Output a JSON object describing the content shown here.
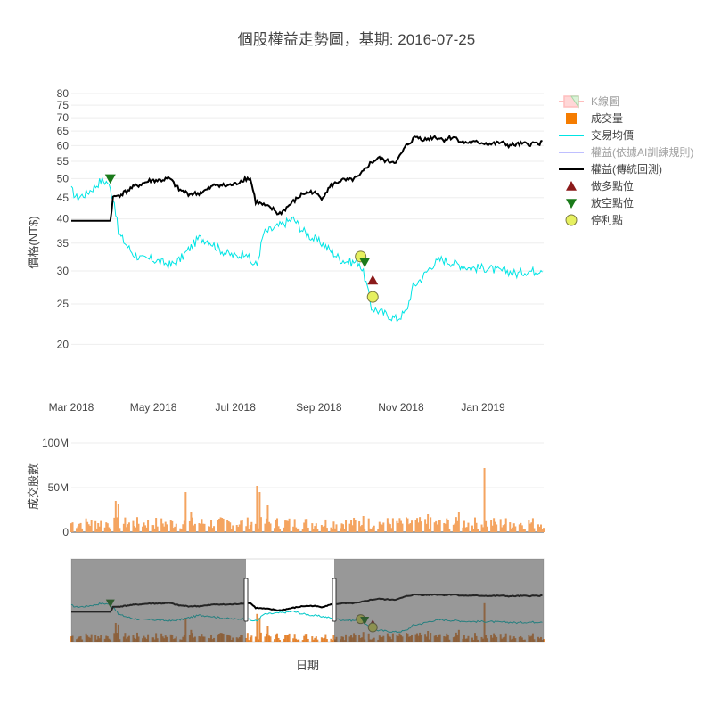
{
  "chart_data": {
    "type": "line",
    "title": "個股權益走勢圖，基期: 2016-07-25",
    "price_panel": {
      "ylabel": "價格(NT$)",
      "y_scale": "log",
      "y_ticks": [
        20,
        25,
        30,
        35,
        40,
        45,
        50,
        55,
        60,
        65,
        70,
        75,
        80
      ],
      "x_ticks": [
        "Mar 2018",
        "May 2018",
        "Jul 2018",
        "Sep 2018",
        "Nov 2018",
        "Jan 2019"
      ],
      "x_range": [
        "2018-03-01",
        "2019-02-15"
      ]
    },
    "volume_panel": {
      "ylabel": "成交股數",
      "y_ticks": [
        "0",
        "50M",
        "100M"
      ],
      "ylim": [
        0,
        100000000
      ]
    },
    "xlabel": "日期",
    "legend": {
      "placement": "right",
      "items": [
        {
          "label": "K線圖",
          "symbol": "candle",
          "color": "#ff7f7f",
          "disabled": true
        },
        {
          "label": "成交量",
          "symbol": "square",
          "color": "#f57c00"
        },
        {
          "label": "交易均價",
          "symbol": "line",
          "color": "#00e5e5"
        },
        {
          "label": "權益(依據AI訓練規則)",
          "symbol": "line",
          "color": "#8080ff",
          "disabled": true
        },
        {
          "label": "權益(傳統回測)",
          "symbol": "line",
          "color": "#000000"
        },
        {
          "label": "做多點位",
          "symbol": "triangle-up",
          "color": "#8b1a1a"
        },
        {
          "label": "放空點位",
          "symbol": "triangle-down",
          "color": "#1a7a1a"
        },
        {
          "label": "停利點",
          "symbol": "circle",
          "color": "#e6f060"
        }
      ]
    },
    "series": [
      {
        "name": "交易均價",
        "color": "#00e5e5",
        "points": [
          [
            "2018-03-01",
            47
          ],
          [
            "2018-03-05",
            45
          ],
          [
            "2018-03-12",
            46
          ],
          [
            "2018-03-19",
            48
          ],
          [
            "2018-03-23",
            49.5
          ],
          [
            "2018-03-28",
            49
          ],
          [
            "2018-04-02",
            44
          ],
          [
            "2018-04-05",
            37
          ],
          [
            "2018-04-10",
            35
          ],
          [
            "2018-04-16",
            33
          ],
          [
            "2018-04-23",
            32
          ],
          [
            "2018-04-30",
            32
          ],
          [
            "2018-05-07",
            31.5
          ],
          [
            "2018-05-14",
            31
          ],
          [
            "2018-05-21",
            32
          ],
          [
            "2018-05-28",
            34
          ],
          [
            "2018-06-04",
            36
          ],
          [
            "2018-06-11",
            35.5
          ],
          [
            "2018-06-18",
            34
          ],
          [
            "2018-06-25",
            33
          ],
          [
            "2018-07-02",
            32.5
          ],
          [
            "2018-07-09",
            33.5
          ],
          [
            "2018-07-12",
            31.5
          ],
          [
            "2018-07-17",
            31
          ],
          [
            "2018-07-22",
            37
          ],
          [
            "2018-07-30",
            38
          ],
          [
            "2018-08-06",
            39
          ],
          [
            "2018-08-13",
            40
          ],
          [
            "2018-08-20",
            37.5
          ],
          [
            "2018-08-27",
            36
          ],
          [
            "2018-09-03",
            35
          ],
          [
            "2018-09-10",
            33.5
          ],
          [
            "2018-09-17",
            32
          ],
          [
            "2018-09-24",
            31.5
          ],
          [
            "2018-10-01",
            31.5
          ],
          [
            "2018-10-05",
            29
          ],
          [
            "2018-10-10",
            24.5
          ],
          [
            "2018-10-16",
            24
          ],
          [
            "2018-10-22",
            23.5
          ],
          [
            "2018-10-29",
            23
          ],
          [
            "2018-11-05",
            24
          ],
          [
            "2018-11-10",
            27.5
          ],
          [
            "2018-11-17",
            29
          ],
          [
            "2018-11-24",
            31
          ],
          [
            "2018-12-01",
            32
          ],
          [
            "2018-12-08",
            31.5
          ],
          [
            "2018-12-15",
            31
          ],
          [
            "2018-12-22",
            30.5
          ],
          [
            "2018-12-29",
            30.5
          ],
          [
            "2019-01-05",
            30.5
          ],
          [
            "2019-01-12",
            30
          ],
          [
            "2019-01-19",
            30
          ],
          [
            "2019-01-26",
            29.5
          ],
          [
            "2019-02-02",
            30
          ],
          [
            "2019-02-09",
            30
          ],
          [
            "2019-02-14",
            30.5
          ]
        ]
      },
      {
        "name": "權益(傳統回測)",
        "color": "#000000",
        "points": [
          [
            "2018-03-01",
            39.6
          ],
          [
            "2018-03-30",
            39.6
          ],
          [
            "2018-04-01",
            45
          ],
          [
            "2018-04-08",
            46
          ],
          [
            "2018-04-15",
            47.5
          ],
          [
            "2018-04-22",
            48.5
          ],
          [
            "2018-04-29",
            49.5
          ],
          [
            "2018-05-06",
            49.5
          ],
          [
            "2018-05-13",
            50
          ],
          [
            "2018-05-20",
            47
          ],
          [
            "2018-05-27",
            46
          ],
          [
            "2018-06-03",
            46
          ],
          [
            "2018-06-10",
            47
          ],
          [
            "2018-06-17",
            48.5
          ],
          [
            "2018-06-24",
            48
          ],
          [
            "2018-07-01",
            48.5
          ],
          [
            "2018-07-08",
            50
          ],
          [
            "2018-07-12",
            50
          ],
          [
            "2018-07-16",
            44
          ],
          [
            "2018-07-23",
            43
          ],
          [
            "2018-07-30",
            42
          ],
          [
            "2018-08-02",
            41
          ],
          [
            "2018-08-06",
            42
          ],
          [
            "2018-08-13",
            44
          ],
          [
            "2018-08-20",
            46
          ],
          [
            "2018-08-27",
            46.5
          ],
          [
            "2018-09-03",
            45
          ],
          [
            "2018-09-10",
            48
          ],
          [
            "2018-09-17",
            49.5
          ],
          [
            "2018-09-24",
            49.5
          ],
          [
            "2018-10-01",
            50.5
          ],
          [
            "2018-10-08",
            54
          ],
          [
            "2018-10-15",
            56
          ],
          [
            "2018-10-22",
            55
          ],
          [
            "2018-10-29",
            55
          ],
          [
            "2018-11-05",
            60
          ],
          [
            "2018-11-12",
            63
          ],
          [
            "2018-11-19",
            62
          ],
          [
            "2018-11-26",
            63
          ],
          [
            "2018-12-03",
            62
          ],
          [
            "2018-12-10",
            63
          ],
          [
            "2018-12-17",
            61
          ],
          [
            "2018-12-24",
            61
          ],
          [
            "2018-12-31",
            61
          ],
          [
            "2019-01-07",
            60.5
          ],
          [
            "2019-01-14",
            61
          ],
          [
            "2019-01-21",
            60
          ],
          [
            "2019-01-28",
            60.5
          ],
          [
            "2019-02-04",
            60.5
          ],
          [
            "2019-02-14",
            61
          ]
        ]
      }
    ],
    "markers": [
      {
        "name": "放空點位",
        "symbol": "triangle-down",
        "color": "#1a7a1a",
        "x": "2018-03-30",
        "y": 50
      },
      {
        "name": "停利點",
        "symbol": "circle",
        "color": "#e6f060",
        "x": "2018-10-02",
        "y": 32.5
      },
      {
        "name": "放空點位",
        "symbol": "triangle-down",
        "color": "#1a7a1a",
        "x": "2018-10-05",
        "y": 31.5
      },
      {
        "name": "做多點位",
        "symbol": "triangle-up",
        "color": "#8b1a1a",
        "x": "2018-10-11",
        "y": 28.5
      },
      {
        "name": "停利點",
        "symbol": "circle",
        "color": "#e6f060",
        "x": "2018-10-11",
        "y": 26
      }
    ],
    "volume": {
      "name": "成交量",
      "color": "#f4a460",
      "spikes": [
        [
          "2018-04-03",
          35000000
        ],
        [
          "2018-04-05",
          32000000
        ],
        [
          "2018-05-25",
          45000000
        ],
        [
          "2018-05-29",
          22000000
        ],
        [
          "2018-07-17",
          52000000
        ],
        [
          "2018-07-19",
          45000000
        ],
        [
          "2018-07-25",
          30000000
        ],
        [
          "2018-10-04",
          18000000
        ],
        [
          "2018-11-21",
          20000000
        ],
        [
          "2018-12-14",
          22000000
        ],
        [
          "2019-01-02",
          72000000
        ]
      ]
    },
    "range_slider": {
      "selected_range": [
        "2018-03-01",
        "2019-02-15"
      ]
    }
  }
}
